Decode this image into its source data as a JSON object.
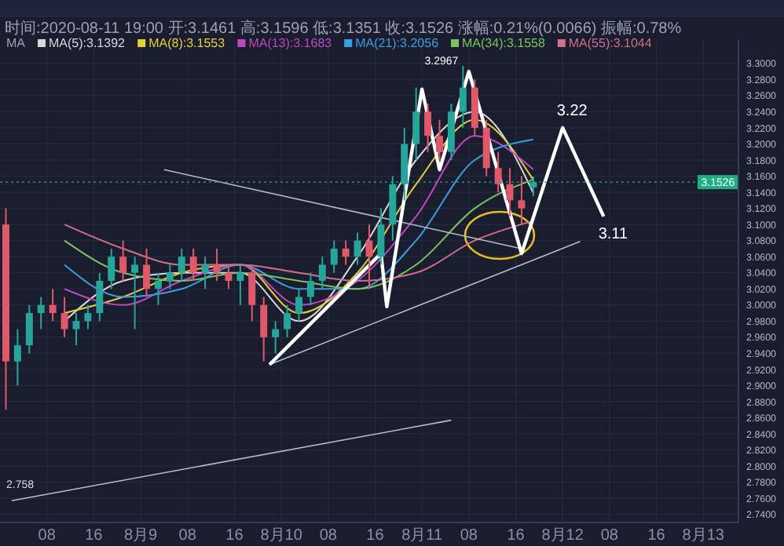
{
  "chart_data": {
    "type": "candlestick",
    "subtitle": "时间:2020-08-11 19:00 开:3.1461 高:3.1596 低:3.1351 收:3.1526 涨幅:0.21%(0.0066) 振幅:0.78%",
    "legend_title": "MA",
    "legend": "top left",
    "grid": true,
    "x": [
      "2020-08-08T01:00",
      "2020-08-08T03:00",
      "2020-08-08T05:00",
      "2020-08-08T07:00",
      "2020-08-08T09:00",
      "2020-08-08T11:00",
      "2020-08-08T13:00",
      "2020-08-08T15:00",
      "2020-08-08T17:00",
      "2020-08-08T19:00",
      "2020-08-08T21:00",
      "2020-08-08T23:00",
      "2020-08-09T01:00",
      "2020-08-09T03:00",
      "2020-08-09T05:00",
      "2020-08-09T07:00",
      "2020-08-09T09:00",
      "2020-08-09T11:00",
      "2020-08-09T13:00",
      "2020-08-09T15:00",
      "2020-08-09T17:00",
      "2020-08-09T19:00",
      "2020-08-09T21:00",
      "2020-08-09T23:00",
      "2020-08-10T01:00",
      "2020-08-10T03:00",
      "2020-08-10T05:00",
      "2020-08-10T07:00",
      "2020-08-10T09:00",
      "2020-08-10T11:00",
      "2020-08-10T13:00",
      "2020-08-10T15:00",
      "2020-08-10T17:00",
      "2020-08-10T19:00",
      "2020-08-10T21:00",
      "2020-08-10T23:00",
      "2020-08-11T01:00",
      "2020-08-11T03:00",
      "2020-08-11T05:00",
      "2020-08-11T07:00",
      "2020-08-11T09:00",
      "2020-08-11T11:00",
      "2020-08-11T13:00",
      "2020-08-11T15:00",
      "2020-08-11T17:00",
      "2020-08-11T19:00"
    ],
    "ohlc": [
      [
        3.1,
        3.12,
        2.87,
        2.93
      ],
      [
        2.93,
        2.97,
        2.9,
        2.95
      ],
      [
        2.95,
        3.0,
        2.94,
        2.99
      ],
      [
        2.99,
        3.01,
        2.97,
        3.0
      ],
      [
        3.0,
        3.02,
        2.98,
        2.99
      ],
      [
        2.99,
        3.01,
        2.96,
        2.97
      ],
      [
        2.97,
        2.99,
        2.95,
        2.98
      ],
      [
        2.98,
        3.0,
        2.97,
        2.99
      ],
      [
        2.99,
        3.04,
        2.98,
        3.03
      ],
      [
        3.03,
        3.07,
        3.02,
        3.06
      ],
      [
        3.06,
        3.08,
        3.03,
        3.04
      ],
      [
        3.04,
        3.06,
        2.97,
        3.05
      ],
      [
        3.05,
        3.07,
        3.01,
        3.02
      ],
      [
        3.02,
        3.04,
        3.0,
        3.03
      ],
      [
        3.03,
        3.05,
        3.02,
        3.04
      ],
      [
        3.04,
        3.07,
        3.03,
        3.06
      ],
      [
        3.06,
        3.07,
        3.03,
        3.04
      ],
      [
        3.04,
        3.06,
        3.02,
        3.05
      ],
      [
        3.05,
        3.07,
        3.03,
        3.04
      ],
      [
        3.04,
        3.05,
        3.02,
        3.03
      ],
      [
        3.03,
        3.05,
        3.0,
        3.04
      ],
      [
        3.04,
        3.05,
        2.98,
        3.0
      ],
      [
        3.0,
        3.01,
        2.93,
        2.96
      ],
      [
        2.96,
        2.98,
        2.94,
        2.97
      ],
      [
        2.97,
        3.0,
        2.96,
        2.99
      ],
      [
        2.99,
        3.02,
        2.98,
        3.01
      ],
      [
        3.01,
        3.04,
        3.0,
        3.03
      ],
      [
        3.03,
        3.06,
        3.02,
        3.05
      ],
      [
        3.05,
        3.08,
        3.04,
        3.07
      ],
      [
        3.07,
        3.08,
        3.05,
        3.06
      ],
      [
        3.06,
        3.09,
        3.05,
        3.08
      ],
      [
        3.08,
        3.1,
        3.02,
        3.06
      ],
      [
        3.06,
        3.12,
        3.05,
        3.1
      ],
      [
        3.1,
        3.16,
        3.08,
        3.15
      ],
      [
        3.15,
        3.22,
        3.13,
        3.2
      ],
      [
        3.2,
        3.27,
        3.18,
        3.24
      ],
      [
        3.24,
        3.25,
        3.19,
        3.21
      ],
      [
        3.21,
        3.23,
        3.18,
        3.19
      ],
      [
        3.19,
        3.25,
        3.18,
        3.24
      ],
      [
        3.24,
        3.2967,
        3.22,
        3.27
      ],
      [
        3.27,
        3.28,
        3.21,
        3.22
      ],
      [
        3.22,
        3.23,
        3.16,
        3.17
      ],
      [
        3.17,
        3.19,
        3.14,
        3.15
      ],
      [
        3.15,
        3.17,
        3.11,
        3.13
      ],
      [
        3.13,
        3.16,
        3.1,
        3.12
      ],
      [
        3.1461,
        3.1596,
        3.1351,
        3.1526
      ]
    ],
    "colors": [
      "#e0596b",
      "#26a69a",
      "#26a69a",
      "#26a69a",
      "#e0596b",
      "#e0596b",
      "#26a69a",
      "#26a69a",
      "#26a69a",
      "#26a69a",
      "#e0596b",
      "#26a69a",
      "#e0596b",
      "#26a69a",
      "#26a69a",
      "#26a69a",
      "#e0596b",
      "#26a69a",
      "#e0596b",
      "#e0596b",
      "#26a69a",
      "#e0596b",
      "#e0596b",
      "#26a69a",
      "#26a69a",
      "#26a69a",
      "#26a69a",
      "#26a69a",
      "#26a69a",
      "#e0596b",
      "#26a69a",
      "#e0596b",
      "#26a69a",
      "#26a69a",
      "#26a69a",
      "#26a69a",
      "#e0596b",
      "#e0596b",
      "#26a69a",
      "#26a69a",
      "#e0596b",
      "#e0596b",
      "#e0596b",
      "#e0596b",
      "#e0596b",
      "#26a69a"
    ],
    "series": [
      {
        "name": "MA(5):3.1392",
        "type": "line",
        "color": "#d8d8d8",
        "x": [
          "2020-08-08T11:00",
          "2020-08-08T21:00",
          "2020-08-09T07:00",
          "2020-08-09T17:00",
          "2020-08-10T03:00",
          "2020-08-10T13:00",
          "2020-08-10T23:00",
          "2020-08-11T09:00",
          "2020-08-11T19:00"
        ],
        "values": [
          2.98,
          3.03,
          3.04,
          3.04,
          2.98,
          3.06,
          3.18,
          3.24,
          3.1392
        ]
      },
      {
        "name": "MA(8):3.1553",
        "type": "line",
        "color": "#e6cf3c",
        "x": [
          "2020-08-08T11:00",
          "2020-08-08T21:00",
          "2020-08-09T07:00",
          "2020-08-09T17:00",
          "2020-08-10T03:00",
          "2020-08-10T13:00",
          "2020-08-10T23:00",
          "2020-08-11T09:00",
          "2020-08-11T19:00"
        ],
        "values": [
          2.99,
          3.01,
          3.04,
          3.05,
          2.99,
          3.04,
          3.15,
          3.23,
          3.1553
        ]
      },
      {
        "name": "MA(13):3.1683",
        "type": "line",
        "color": "#c246c2",
        "x": [
          "2020-08-08T11:00",
          "2020-08-08T21:00",
          "2020-08-09T07:00",
          "2020-08-09T17:00",
          "2020-08-10T03:00",
          "2020-08-10T13:00",
          "2020-08-10T23:00",
          "2020-08-11T09:00",
          "2020-08-11T19:00"
        ],
        "values": [
          3.02,
          3.0,
          3.03,
          3.05,
          3.0,
          3.03,
          3.11,
          3.21,
          3.1683
        ]
      },
      {
        "name": "MA(21):3.2056",
        "type": "line",
        "color": "#3a9fe0",
        "x": [
          "2020-08-08T11:00",
          "2020-08-08T21:00",
          "2020-08-09T07:00",
          "2020-08-09T17:00",
          "2020-08-10T03:00",
          "2020-08-10T13:00",
          "2020-08-10T23:00",
          "2020-08-11T09:00",
          "2020-08-11T19:00"
        ],
        "values": [
          3.05,
          3.01,
          3.02,
          3.05,
          3.02,
          3.02,
          3.08,
          3.18,
          3.2056
        ]
      },
      {
        "name": "MA(34):3.1558",
        "type": "line",
        "color": "#7cc35e",
        "x": [
          "2020-08-08T11:00",
          "2020-08-08T21:00",
          "2020-08-09T07:00",
          "2020-08-09T17:00",
          "2020-08-10T03:00",
          "2020-08-10T13:00",
          "2020-08-10T23:00",
          "2020-08-11T09:00",
          "2020-08-11T19:00"
        ],
        "values": [
          3.08,
          3.04,
          3.03,
          3.04,
          3.03,
          3.02,
          3.05,
          3.12,
          3.1558
        ]
      },
      {
        "name": "MA(55):3.1044",
        "type": "line",
        "color": "#d0708a",
        "x": [
          "2020-08-08T11:00",
          "2020-08-08T21:00",
          "2020-08-09T07:00",
          "2020-08-09T17:00",
          "2020-08-10T03:00",
          "2020-08-10T13:00",
          "2020-08-10T23:00",
          "2020-08-11T09:00",
          "2020-08-11T19:00"
        ],
        "values": [
          3.1,
          3.07,
          3.05,
          3.05,
          3.04,
          3.03,
          3.04,
          3.08,
          3.1044
        ]
      },
      {
        "type": "line",
        "color": "#b8bcc8",
        "x": [
          "2020-08-09T04:00",
          "2020-08-11T17:00"
        ],
        "values": [
          3.168,
          3.07
        ]
      },
      {
        "type": "line",
        "color": "#b8bcc8",
        "x": [
          "2020-08-09T22:00",
          "2020-08-12T03:00"
        ],
        "values": [
          2.926,
          3.079
        ]
      },
      {
        "type": "line",
        "color": "#b8bcc8",
        "x": [
          "2020-08-08T02:00",
          "2020-08-11T05:00"
        ],
        "values": [
          2.757,
          2.857
        ]
      },
      {
        "type": "line",
        "color": "#ffffff",
        "x": [
          "2020-08-09T22:00",
          "2020-08-10T17:00",
          "2020-08-10T18:00",
          "2020-08-11T00:00",
          "2020-08-11T03:00",
          "2020-08-11T08:00",
          "2020-08-11T17:00",
          "2020-08-12T00:00",
          "2020-08-12T07:00"
        ],
        "values": [
          2.926,
          3.064,
          2.998,
          3.268,
          3.168,
          3.29,
          3.064,
          3.22,
          3.11
        ]
      }
    ],
    "xlim": [
      "2020-08-08T00:00",
      "2020-08-13T06:00"
    ],
    "xticks": [
      {
        "value": "2020-08-08T08:00",
        "label": "08"
      },
      {
        "value": "2020-08-08T16:00",
        "label": "16"
      },
      {
        "value": "2020-08-09T00:00",
        "label": "8月9"
      },
      {
        "value": "2020-08-09T08:00",
        "label": "08"
      },
      {
        "value": "2020-08-09T16:00",
        "label": "16"
      },
      {
        "value": "2020-08-10T00:00",
        "label": "8月10"
      },
      {
        "value": "2020-08-10T08:00",
        "label": "08"
      },
      {
        "value": "2020-08-10T16:00",
        "label": "16"
      },
      {
        "value": "2020-08-11T00:00",
        "label": "8月11"
      },
      {
        "value": "2020-08-11T08:00",
        "label": "08"
      },
      {
        "value": "2020-08-11T16:00",
        "label": "16"
      },
      {
        "value": "2020-08-12T00:00",
        "label": "8月12"
      },
      {
        "value": "2020-08-12T08:00",
        "label": "08"
      },
      {
        "value": "2020-08-12T16:00",
        "label": "16"
      },
      {
        "value": "2020-08-13T00:00",
        "label": "8月13"
      }
    ],
    "ylim": [
      2.73,
      3.33
    ],
    "yticks": [
      {
        "value": 2.74,
        "label": "2.7400"
      },
      {
        "value": 2.76,
        "label": "2.7600"
      },
      {
        "value": 2.78,
        "label": "2.7800"
      },
      {
        "value": 2.8,
        "label": "2.8000"
      },
      {
        "value": 2.82,
        "label": "2.8200"
      },
      {
        "value": 2.84,
        "label": "2.8400"
      },
      {
        "value": 2.86,
        "label": "2.8600"
      },
      {
        "value": 2.88,
        "label": "2.8800"
      },
      {
        "value": 2.9,
        "label": "2.9000"
      },
      {
        "value": 2.92,
        "label": "2.9200"
      },
      {
        "value": 2.94,
        "label": "2.9400"
      },
      {
        "value": 2.96,
        "label": "2.9600"
      },
      {
        "value": 2.98,
        "label": "2.9800"
      },
      {
        "value": 3.0,
        "label": "3.0000"
      },
      {
        "value": 3.02,
        "label": "3.0200"
      },
      {
        "value": 3.04,
        "label": "3.0400"
      },
      {
        "value": 3.06,
        "label": "3.0600"
      },
      {
        "value": 3.08,
        "label": "3.0800"
      },
      {
        "value": 3.1,
        "label": "3.1000"
      },
      {
        "value": 3.12,
        "label": "3.1200"
      },
      {
        "value": 3.14,
        "label": "3.1400"
      },
      {
        "value": 3.16,
        "label": "3.1600"
      },
      {
        "value": 3.18,
        "label": "3.1800"
      },
      {
        "value": 3.2,
        "label": "3.2000"
      },
      {
        "value": 3.22,
        "label": "3.2200"
      },
      {
        "value": 3.24,
        "label": "3.2400"
      },
      {
        "value": 3.26,
        "label": "3.2600"
      },
      {
        "value": 3.28,
        "label": "3.2800"
      },
      {
        "value": 3.3,
        "label": "3.3000"
      }
    ],
    "ref_lines": [
      {
        "axis": "y",
        "value": 3.1526,
        "label": "3.1526",
        "color": "#1fae80",
        "line_style": "dotted"
      }
    ],
    "annotations": [
      {
        "text": "3.2967",
        "x": "2020-08-11T07:00",
        "y": 3.2967
      },
      {
        "text": "3.22",
        "x": "2020-08-12T00:00",
        "y": 3.22
      },
      {
        "text": "3.11",
        "x": "2020-08-12T07:00",
        "y": 3.11
      },
      "2.758"
    ]
  }
}
